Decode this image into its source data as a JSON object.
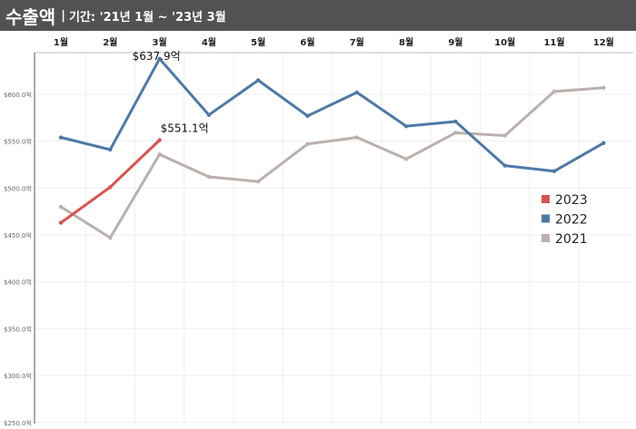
{
  "header": {
    "title": "수출액",
    "separator": "|",
    "subtitle": "기간: '21년 1월 ~ '23년 3월",
    "background": "#525252"
  },
  "chart_data": {
    "type": "line",
    "categories": [
      "1월",
      "2월",
      "3월",
      "4월",
      "5월",
      "6월",
      "7월",
      "8월",
      "9월",
      "10월",
      "11월",
      "12월"
    ],
    "y_tick_labels": [
      "$250.0억",
      "$300.0억",
      "$350.0억",
      "$400.0억",
      "$450.0억",
      "$500.0억",
      "$550.0억",
      "$600.0억"
    ],
    "y_ticks": [
      250,
      300,
      350,
      400,
      450,
      500,
      550,
      600
    ],
    "ylim": [
      250,
      645
    ],
    "x_axis_position": "top",
    "grid": true,
    "legend_position": "right",
    "series": [
      {
        "name": "2023",
        "color": "#d9534f",
        "values": [
          463,
          501,
          551.1,
          null,
          null,
          null,
          null,
          null,
          null,
          null,
          null,
          null
        ]
      },
      {
        "name": "2022",
        "color": "#4e79a7",
        "values": [
          554,
          541,
          637.9,
          578,
          615,
          577,
          602,
          566,
          571,
          524,
          518,
          548
        ]
      },
      {
        "name": "2021",
        "color": "#bab0ac",
        "values": [
          480,
          447,
          536,
          512,
          507,
          547,
          554,
          531,
          559,
          556,
          603,
          607
        ]
      }
    ],
    "annotations": [
      {
        "series": "2022",
        "index": 2,
        "text": "$637.9억"
      },
      {
        "series": "2023",
        "index": 2,
        "text": "$551.1억"
      }
    ]
  }
}
